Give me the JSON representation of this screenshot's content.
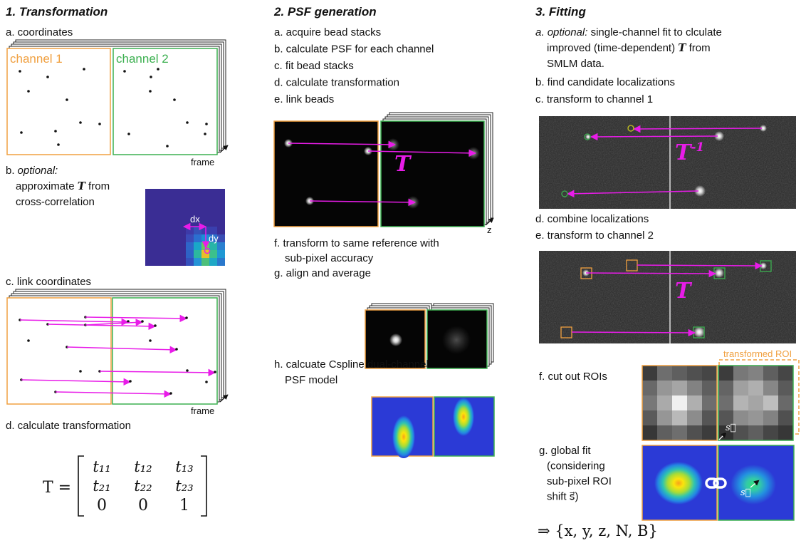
{
  "columns": [
    {
      "title": "1. Transformation",
      "step_a": {
        "label": "a. coordinates",
        "channel_1": "channel 1",
        "channel_2": "channel 2",
        "axis": "frame"
      },
      "step_b": {
        "prefix": "b.",
        "optional": "optional:",
        "line_1": [
          "approximate ",
          "T",
          " from"
        ],
        "line_2": "cross-correlation",
        "dx": "dx",
        "dy": "dy"
      },
      "step_c": {
        "label": "c. link coordinates",
        "axis": "frame"
      },
      "step_d": {
        "label": "d. calculate transformation",
        "lhs": "T =",
        "matrix": [
          [
            "t₁₁",
            "t₁₂",
            "t₁₃"
          ],
          [
            "t₂₁",
            "t₂₂",
            "t₂₃"
          ],
          [
            "0",
            "0",
            "1"
          ]
        ]
      }
    },
    {
      "title": "2. PSF generation",
      "steps": [
        "a. acquire bead stacks",
        "b. calculate PSF for each channel",
        "c. fit bead stacks",
        "d. calculate transformation",
        "e. link beads"
      ],
      "link_label": "T",
      "axis": "z",
      "step_f": [
        "f. transform to same reference with",
        "sub-pixel accuracy"
      ],
      "step_g": "g. align and average",
      "step_h": [
        "h. calcuate Cspline dual-channel",
        "PSF model"
      ]
    },
    {
      "title": "3. Fitting",
      "step_a": {
        "prefix": "a. ",
        "optional": "optional:",
        "line_1": " single-channel fit to clculate",
        "line_2": [
          "improved (time-dependent) ",
          "T",
          " from"
        ],
        "line_3": "SMLM data."
      },
      "step_b": "b. find candidate localizations",
      "step_c": "c. transform to channel 1",
      "inverse": {
        "symbol": "T",
        "superscript": "-1"
      },
      "step_d": "d. combine localizations",
      "step_e": "e. transform to channel 2",
      "forward": "T",
      "roi_label": "transformed ROI",
      "step_f": "f. cut out ROIs",
      "shift": "s⃗",
      "step_g": [
        "g. global fit",
        "(considering",
        "sub-pixel ROI",
        "shift s⃗)"
      ],
      "result": "⇒ {x, y, z, N, B}"
    }
  ]
}
